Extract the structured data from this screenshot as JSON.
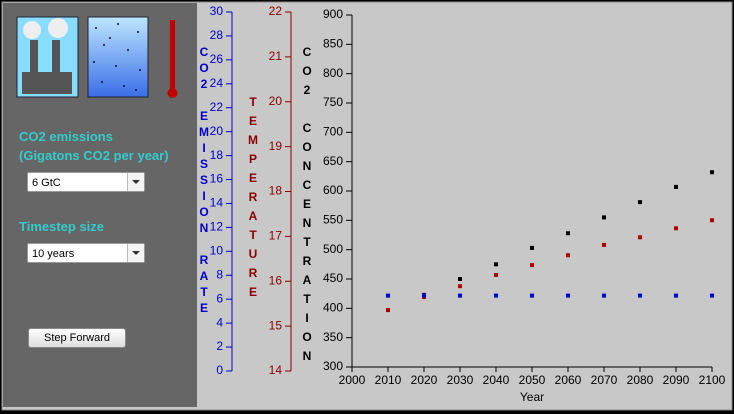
{
  "panel": {
    "emissions_label": [
      "CO2 emissions",
      "(Gigatons CO2 per year)"
    ],
    "emissions_select": "6 GtC",
    "timestep_label": "Timestep size",
    "timestep_select": "10 years",
    "step_button": "Step Forward"
  },
  "chart_data": {
    "type": "scatter",
    "x": [
      2010,
      2020,
      2030,
      2040,
      2050,
      2060,
      2070,
      2080,
      2090,
      2100
    ],
    "xlim": [
      2000,
      2100
    ],
    "xticks": [
      2000,
      2010,
      2020,
      2030,
      2040,
      2050,
      2060,
      2070,
      2080,
      2090,
      2100
    ],
    "xlabel": "Year",
    "ylabel": "CO2 CONCENTRATION",
    "ylim": [
      300,
      900
    ],
    "yticks": [
      300,
      350,
      400,
      450,
      500,
      550,
      600,
      650,
      700,
      750,
      800,
      850,
      900
    ],
    "ycolor": "#000000",
    "y2label": "TEMPERATURE",
    "y2lim": [
      14,
      22
    ],
    "y2ticks": [
      14,
      15,
      16,
      17,
      18,
      19,
      20,
      21,
      22
    ],
    "y2color": "#8b0000",
    "y3label": "CO2 EMISSION RATE",
    "y3lim": [
      0,
      30
    ],
    "y3ticks": [
      0,
      2,
      4,
      6,
      8,
      10,
      12,
      14,
      16,
      18,
      20,
      22,
      24,
      26,
      28,
      30
    ],
    "y3color": "#0000cc",
    "series": [
      {
        "color": "#000000",
        "values": [
          397,
          423,
          450,
          475,
          503,
          528,
          555,
          581,
          607,
          632
        ]
      },
      {
        "color": "#b00000",
        "axis": "y2",
        "values": [
          15.36,
          15.65,
          15.89,
          16.14,
          16.36,
          16.58,
          16.81,
          16.98,
          17.18,
          17.36
        ]
      },
      {
        "color": "#0000dd",
        "axis": "y3",
        "values": [
          6.3,
          6.3,
          6.3,
          6.3,
          6.3,
          6.3,
          6.3,
          6.3,
          6.3,
          6.3
        ]
      }
    ]
  }
}
